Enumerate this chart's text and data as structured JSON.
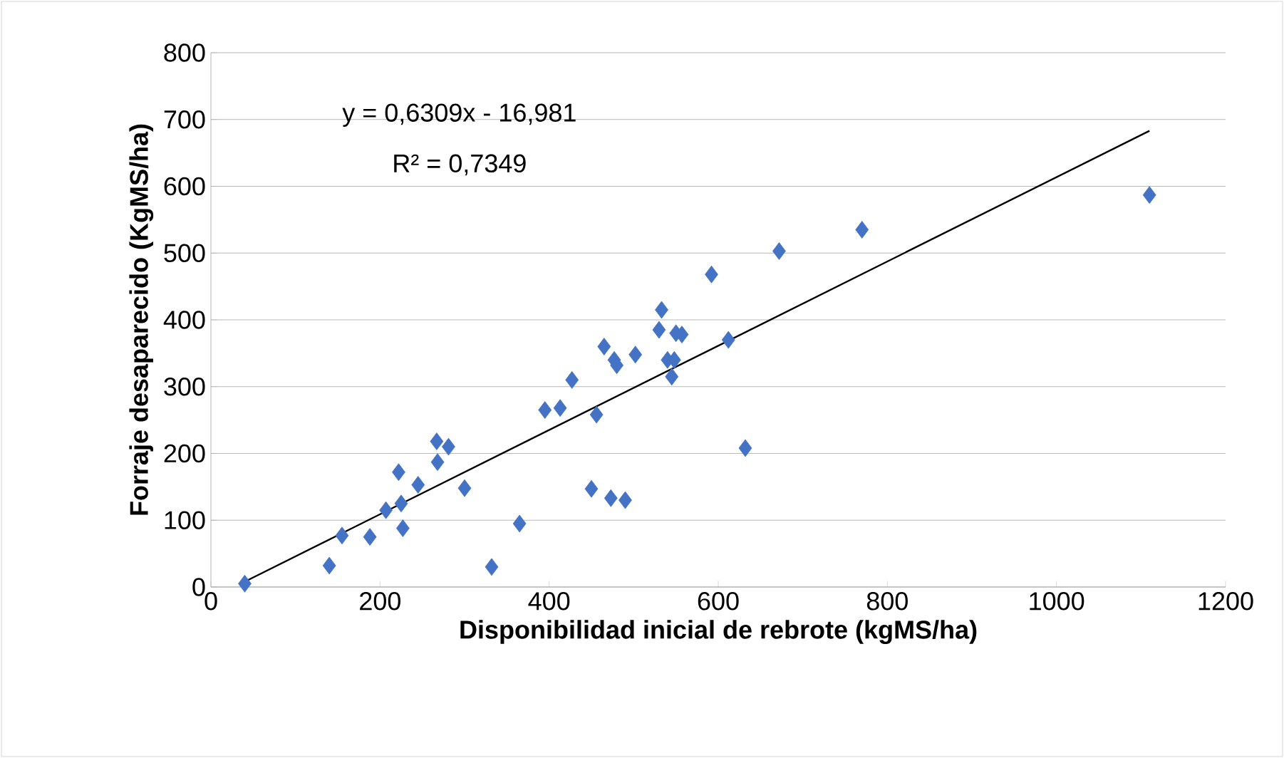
{
  "chart_data": {
    "type": "scatter",
    "xlabel": "Disponibilidad inicial de rebrote (kgMS/ha)",
    "ylabel": "Forraje desaparecido (KgMS/ha)",
    "xlim": [
      0,
      1200
    ],
    "xticks": [
      0,
      200,
      400,
      600,
      800,
      1000,
      1200
    ],
    "ylim": [
      0,
      800
    ],
    "yticks": [
      0,
      100,
      200,
      300,
      400,
      500,
      600,
      700,
      800
    ],
    "grid": "y",
    "series": [
      {
        "color": "#4472c4",
        "marker": "diamond",
        "x": [
          40,
          140,
          155,
          188,
          207,
          222,
          225,
          227,
          245,
          267,
          268,
          281,
          300,
          332,
          365,
          395,
          413,
          427,
          450,
          456,
          465,
          473,
          477,
          480,
          490,
          502,
          530,
          533,
          540,
          545,
          548,
          550,
          557,
          592,
          612,
          632,
          672,
          770,
          1110
        ],
        "values": [
          5,
          32,
          77,
          75,
          115,
          172,
          125,
          88,
          153,
          218,
          187,
          210,
          148,
          30,
          95,
          265,
          268,
          310,
          147,
          258,
          360,
          133,
          340,
          332,
          130,
          348,
          385,
          415,
          340,
          315,
          340,
          380,
          378,
          468,
          370,
          208,
          503,
          535,
          587
        ]
      },
      {
        "type": "line",
        "color": "#000000",
        "x": [
          40,
          1110
        ],
        "values": [
          8,
          683
        ]
      }
    ],
    "annotations": [
      "y = 0,6309x - 16,981",
      "R² = 0,7349"
    ]
  }
}
